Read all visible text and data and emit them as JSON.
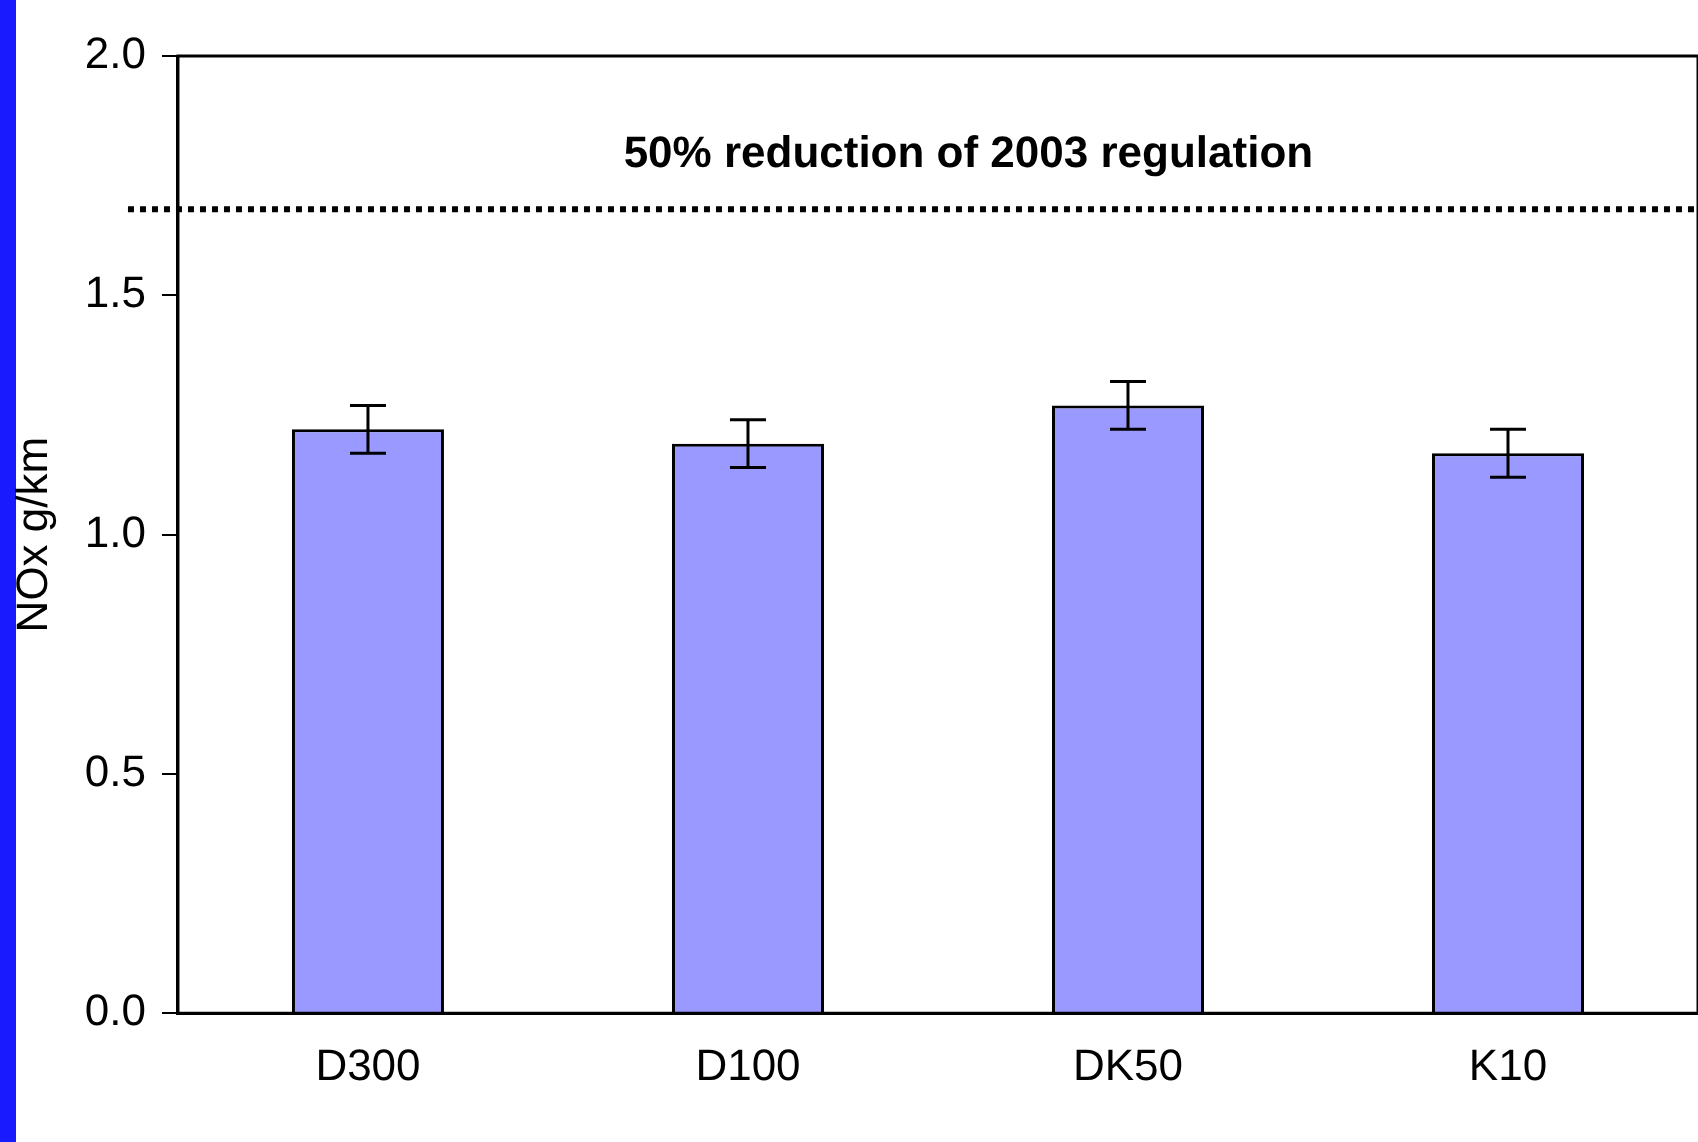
{
  "chart_data": {
    "type": "bar",
    "ylabel": "NOx g/km",
    "categories": [
      "D300",
      "D100",
      "DK50",
      "K10"
    ],
    "values": [
      1.22,
      1.19,
      1.27,
      1.17
    ],
    "color": "#9999ff",
    "errors": [
      0.05,
      0.05,
      0.05,
      0.05
    ],
    "ylim": [
      0,
      2.0
    ],
    "yticks": [
      {
        "value": 0,
        "label": "0.0"
      },
      {
        "value": 0.5,
        "label": "0.5"
      },
      {
        "value": 1,
        "label": "1.0"
      },
      {
        "value": 1.5,
        "label": "1.5"
      },
      {
        "value": 2,
        "label": "2.0"
      }
    ],
    "grid": false,
    "legend": false,
    "ref_lines": [
      {
        "axis": "y",
        "value": 1.68,
        "label": "50% reduction of 2003 regulation",
        "color": "#000000",
        "line_style": "dotted"
      }
    ]
  }
}
